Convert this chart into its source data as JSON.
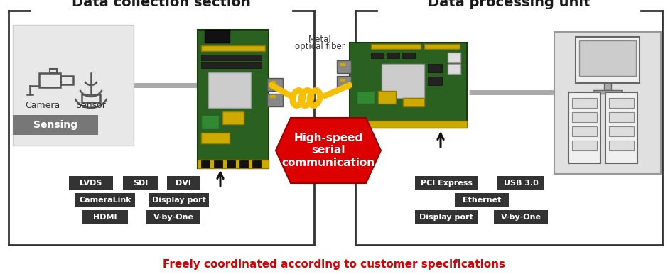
{
  "title_left": "Data collection section",
  "title_right": "Data processing unit",
  "bottom_text": "Freely coordinated according to customer specifications",
  "center_text": [
    "High-speed",
    "serial",
    "communication"
  ],
  "fiber_label": [
    "Metal",
    "optical fiber"
  ],
  "sensing_label": "Sensing",
  "camera_label": "Camera",
  "sensor_label": "Sensor",
  "left_boxes_row1": [
    "LVDS",
    "SDI",
    "DVI"
  ],
  "left_boxes_row2": [
    "CameraLink",
    "Display port"
  ],
  "left_boxes_row3": [
    "HDMI",
    "V-by-One"
  ],
  "right_boxes_row1": [
    "PCI Express",
    "USB 3.0"
  ],
  "right_boxes_row2": [
    "Ethernet"
  ],
  "right_boxes_row3": [
    "Display port",
    "V-by-One"
  ],
  "bg_color": "#ffffff",
  "box_bg": "#333333",
  "box_text_color": "#ffffff",
  "red_color": "#dd0000",
  "fiber_color": "#f5c000",
  "border_color": "#444444",
  "section_border": "#333333",
  "gray_box_bg": "#e8e8e8",
  "sensing_bg": "#777777",
  "pcb_green": "#2a6020",
  "pcb_dark": "#1a3a10",
  "pcb_yellow": "#ccaa00",
  "pcb_gray": "#aaaaaa",
  "pc_bg": "#e0e0e0"
}
